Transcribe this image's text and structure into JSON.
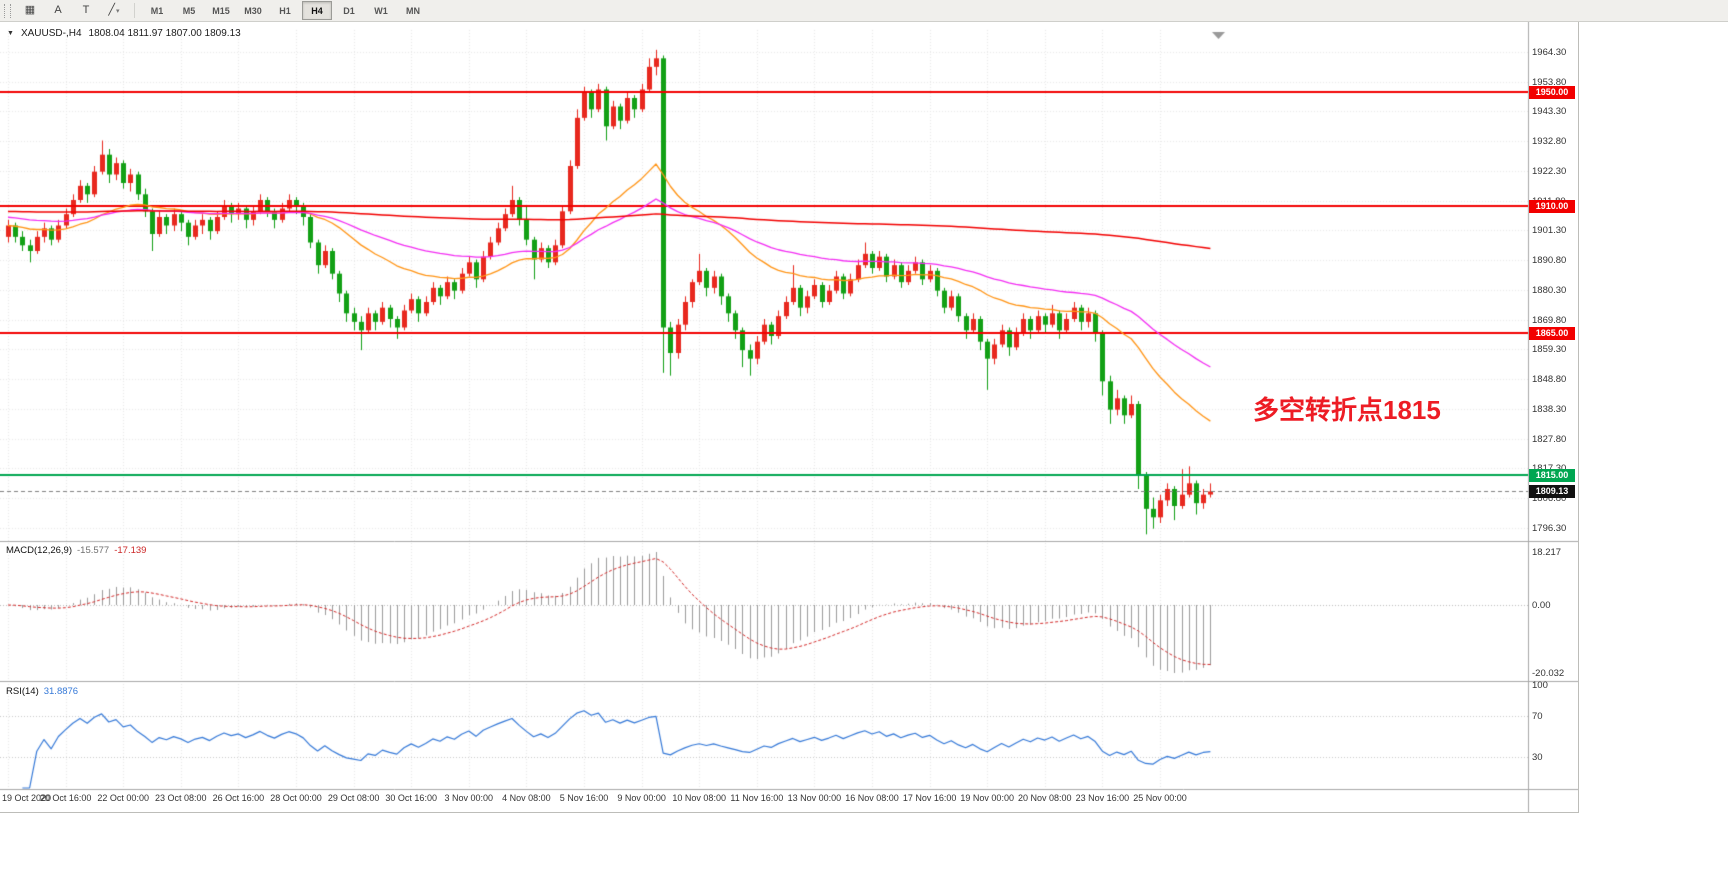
{
  "toolbar": {
    "tools": [
      {
        "name": "new-chart-icon",
        "glyph": "▦"
      },
      {
        "name": "cursor-icon",
        "glyph": "A"
      },
      {
        "name": "text-label-icon",
        "glyph": "T"
      },
      {
        "name": "trendline-icon",
        "glyph": "╱",
        "dropdown": "▾"
      }
    ],
    "timeframes": [
      "M1",
      "M5",
      "M15",
      "M30",
      "H1",
      "H4",
      "D1",
      "W1",
      "MN"
    ],
    "active_timeframe": "H4"
  },
  "chart_data": {
    "type": "candlestick",
    "symbol": "XAUUSD",
    "period": "H4",
    "symbol_label": "XAUUSD-,H4",
    "ohlc_string": "1808.04 1811.97 1807.00 1809.13",
    "bull_color": "#e8281e",
    "bear_color": "#12a015",
    "candles": [
      [
        1899,
        1905,
        1897,
        1903
      ],
      [
        1903,
        1904,
        1897,
        1899
      ],
      [
        1899,
        1901,
        1894,
        1896
      ],
      [
        1896,
        1898,
        1890,
        1894
      ],
      [
        1894,
        1901,
        1893,
        1899
      ],
      [
        1899,
        1904,
        1897,
        1902
      ],
      [
        1902,
        1903,
        1896,
        1898
      ],
      [
        1898,
        1905,
        1897,
        1903
      ],
      [
        1903,
        1909,
        1902,
        1907
      ],
      [
        1907,
        1914,
        1906,
        1912
      ],
      [
        1912,
        1919,
        1911,
        1917
      ],
      [
        1917,
        1918,
        1911,
        1914
      ],
      [
        1914,
        1924,
        1913,
        1922
      ],
      [
        1922,
        1933,
        1921,
        1928
      ],
      [
        1928,
        1930,
        1918,
        1921
      ],
      [
        1921,
        1927,
        1919,
        1925
      ],
      [
        1925,
        1926,
        1916,
        1918
      ],
      [
        1918,
        1923,
        1915,
        1921
      ],
      [
        1921,
        1922,
        1912,
        1914
      ],
      [
        1914,
        1916,
        1906,
        1908
      ],
      [
        1908,
        1909,
        1894,
        1900
      ],
      [
        1900,
        1908,
        1899,
        1906
      ],
      [
        1906,
        1907,
        1900,
        1903
      ],
      [
        1903,
        1909,
        1901,
        1907
      ],
      [
        1907,
        1908,
        1901,
        1904
      ],
      [
        1904,
        1905,
        1896,
        1899
      ],
      [
        1899,
        1905,
        1898,
        1903
      ],
      [
        1903,
        1907,
        1900,
        1905
      ],
      [
        1905,
        1906,
        1898,
        1901
      ],
      [
        1901,
        1908,
        1900,
        1906
      ],
      [
        1906,
        1912,
        1905,
        1910
      ],
      [
        1910,
        1911,
        1904,
        1907
      ],
      [
        1907,
        1911,
        1905,
        1909
      ],
      [
        1909,
        1910,
        1902,
        1905
      ],
      [
        1905,
        1910,
        1903,
        1908
      ],
      [
        1908,
        1914,
        1907,
        1912
      ],
      [
        1912,
        1913,
        1906,
        1908
      ],
      [
        1908,
        1909,
        1902,
        1905
      ],
      [
        1905,
        1911,
        1904,
        1909
      ],
      [
        1909,
        1914,
        1908,
        1912
      ],
      [
        1912,
        1913,
        1907,
        1910
      ],
      [
        1910,
        1911,
        1903,
        1906
      ],
      [
        1906,
        1907,
        1895,
        1897
      ],
      [
        1897,
        1898,
        1886,
        1889
      ],
      [
        1889,
        1896,
        1888,
        1894
      ],
      [
        1894,
        1895,
        1884,
        1886
      ],
      [
        1886,
        1887,
        1876,
        1879
      ],
      [
        1879,
        1880,
        1869,
        1872
      ],
      [
        1872,
        1874,
        1866,
        1869
      ],
      [
        1869,
        1871,
        1859,
        1866
      ],
      [
        1866,
        1874,
        1865,
        1872
      ],
      [
        1872,
        1873,
        1866,
        1869
      ],
      [
        1869,
        1876,
        1868,
        1874
      ],
      [
        1874,
        1875,
        1867,
        1870
      ],
      [
        1870,
        1871,
        1863,
        1867
      ],
      [
        1867,
        1875,
        1866,
        1873
      ],
      [
        1873,
        1879,
        1872,
        1877
      ],
      [
        1877,
        1878,
        1869,
        1872
      ],
      [
        1872,
        1878,
        1871,
        1876
      ],
      [
        1876,
        1883,
        1875,
        1881
      ],
      [
        1881,
        1882,
        1875,
        1878
      ],
      [
        1878,
        1885,
        1877,
        1883
      ],
      [
        1883,
        1884,
        1877,
        1880
      ],
      [
        1880,
        1888,
        1879,
        1886
      ],
      [
        1886,
        1892,
        1885,
        1890
      ],
      [
        1890,
        1891,
        1881,
        1884
      ],
      [
        1884,
        1894,
        1883,
        1892
      ],
      [
        1892,
        1899,
        1891,
        1897
      ],
      [
        1897,
        1904,
        1896,
        1902
      ],
      [
        1902,
        1909,
        1901,
        1907
      ],
      [
        1907,
        1917,
        1906,
        1912
      ],
      [
        1912,
        1913,
        1903,
        1905
      ],
      [
        1905,
        1910,
        1896,
        1898
      ],
      [
        1898,
        1899,
        1884,
        1891
      ],
      [
        1891,
        1897,
        1890,
        1895
      ],
      [
        1895,
        1896,
        1888,
        1890
      ],
      [
        1890,
        1898,
        1889,
        1896
      ],
      [
        1896,
        1910,
        1895,
        1908
      ],
      [
        1908,
        1926,
        1907,
        1924
      ],
      [
        1924,
        1944,
        1923,
        1941
      ],
      [
        1941,
        1952,
        1940,
        1950
      ],
      [
        1950,
        1951,
        1941,
        1944
      ],
      [
        1944,
        1953,
        1943,
        1951
      ],
      [
        1951,
        1952,
        1933,
        1938
      ],
      [
        1938,
        1947,
        1937,
        1945
      ],
      [
        1945,
        1946,
        1937,
        1940
      ],
      [
        1940,
        1950,
        1939,
        1948
      ],
      [
        1948,
        1949,
        1941,
        1944
      ],
      [
        1944,
        1953,
        1943,
        1951
      ],
      [
        1951,
        1962,
        1950,
        1959
      ],
      [
        1959,
        1965,
        1956,
        1962
      ],
      [
        1962,
        1963,
        1851,
        1867
      ],
      [
        1867,
        1869,
        1850,
        1858
      ],
      [
        1858,
        1870,
        1856,
        1868
      ],
      [
        1868,
        1878,
        1866,
        1876
      ],
      [
        1876,
        1884,
        1874,
        1883
      ],
      [
        1883,
        1893,
        1882,
        1887
      ],
      [
        1887,
        1888,
        1878,
        1881
      ],
      [
        1881,
        1887,
        1879,
        1885
      ],
      [
        1885,
        1886,
        1875,
        1878
      ],
      [
        1878,
        1879,
        1869,
        1872
      ],
      [
        1872,
        1873,
        1863,
        1866
      ],
      [
        1866,
        1867,
        1853,
        1859
      ],
      [
        1859,
        1861,
        1850,
        1856
      ],
      [
        1856,
        1864,
        1854,
        1862
      ],
      [
        1862,
        1870,
        1861,
        1868
      ],
      [
        1868,
        1869,
        1861,
        1864
      ],
      [
        1864,
        1873,
        1863,
        1871
      ],
      [
        1871,
        1878,
        1870,
        1876
      ],
      [
        1876,
        1889,
        1875,
        1881
      ],
      [
        1881,
        1882,
        1871,
        1874
      ],
      [
        1874,
        1880,
        1872,
        1878
      ],
      [
        1878,
        1884,
        1877,
        1882
      ],
      [
        1882,
        1883,
        1874,
        1876
      ],
      [
        1876,
        1882,
        1875,
        1880
      ],
      [
        1880,
        1887,
        1879,
        1885
      ],
      [
        1885,
        1886,
        1877,
        1879
      ],
      [
        1879,
        1886,
        1878,
        1884
      ],
      [
        1884,
        1891,
        1883,
        1889
      ],
      [
        1889,
        1897,
        1888,
        1893
      ],
      [
        1893,
        1894,
        1886,
        1888
      ],
      [
        1888,
        1894,
        1887,
        1892
      ],
      [
        1892,
        1893,
        1883,
        1885
      ],
      [
        1885,
        1891,
        1884,
        1889
      ],
      [
        1889,
        1890,
        1881,
        1883
      ],
      [
        1883,
        1889,
        1882,
        1887
      ],
      [
        1887,
        1892,
        1886,
        1890
      ],
      [
        1890,
        1891,
        1882,
        1884
      ],
      [
        1884,
        1889,
        1883,
        1887
      ],
      [
        1887,
        1888,
        1878,
        1880
      ],
      [
        1880,
        1881,
        1872,
        1874
      ],
      [
        1874,
        1880,
        1873,
        1878
      ],
      [
        1878,
        1879,
        1869,
        1871
      ],
      [
        1871,
        1872,
        1863,
        1866
      ],
      [
        1866,
        1872,
        1865,
        1870
      ],
      [
        1870,
        1871,
        1859,
        1862
      ],
      [
        1862,
        1863,
        1845,
        1856
      ],
      [
        1856,
        1863,
        1854,
        1861
      ],
      [
        1861,
        1868,
        1860,
        1866
      ],
      [
        1866,
        1867,
        1857,
        1860
      ],
      [
        1860,
        1867,
        1859,
        1865
      ],
      [
        1865,
        1872,
        1864,
        1870
      ],
      [
        1870,
        1871,
        1863,
        1866
      ],
      [
        1866,
        1873,
        1865,
        1871
      ],
      [
        1871,
        1872,
        1865,
        1868
      ],
      [
        1868,
        1875,
        1867,
        1872
      ],
      [
        1872,
        1873,
        1863,
        1866
      ],
      [
        1866,
        1872,
        1865,
        1870
      ],
      [
        1870,
        1876,
        1869,
        1874
      ],
      [
        1874,
        1875,
        1866,
        1869
      ],
      [
        1869,
        1874,
        1867,
        1872
      ],
      [
        1872,
        1873,
        1862,
        1865
      ],
      [
        1865,
        1866,
        1843,
        1848
      ],
      [
        1848,
        1850,
        1833,
        1838
      ],
      [
        1838,
        1845,
        1836,
        1842
      ],
      [
        1842,
        1843,
        1833,
        1836
      ],
      [
        1836,
        1843,
        1835,
        1840
      ],
      [
        1840,
        1841,
        1810,
        1815
      ],
      [
        1815,
        1816,
        1794,
        1803
      ],
      [
        1803,
        1807,
        1796,
        1800
      ],
      [
        1800,
        1808,
        1798,
        1806
      ],
      [
        1806,
        1812,
        1804,
        1810
      ],
      [
        1810,
        1811,
        1799,
        1804
      ],
      [
        1804,
        1817,
        1803,
        1808
      ],
      [
        1808,
        1818,
        1807,
        1812
      ],
      [
        1812,
        1813,
        1801,
        1805
      ],
      [
        1805,
        1810,
        1803,
        1808
      ],
      [
        1808.04,
        1811.97,
        1807,
        1809.13
      ]
    ],
    "x_axis": [
      "19 Oct 2020",
      "20 Oct 16:00",
      "22 Oct 00:00",
      "23 Oct 08:00",
      "26 Oct 16:00",
      "28 Oct 00:00",
      "29 Oct 08:00",
      "30 Oct 16:00",
      "3 Nov 00:00",
      "4 Nov 08:00",
      "5 Nov 16:00",
      "9 Nov 00:00",
      "10 Nov 08:00",
      "11 Nov 16:00",
      "13 Nov 00:00",
      "16 Nov 08:00",
      "17 Nov 16:00",
      "19 Nov 00:00",
      "20 Nov 08:00",
      "23 Nov 16:00",
      "25 Nov 00:00"
    ],
    "y_axis": [
      "1964.30",
      "1953.80",
      "1943.30",
      "1932.80",
      "1922.30",
      "1911.80",
      "1901.30",
      "1890.80",
      "1880.30",
      "1869.80",
      "1859.30",
      "1848.80",
      "1838.30",
      "1827.80",
      "1817.30",
      "1806.80",
      "1796.30"
    ],
    "hlines": [
      {
        "price": 1950,
        "label": "1950.00",
        "color": "#f20000"
      },
      {
        "price": 1910,
        "label": "1910.00",
        "color": "#f20000"
      },
      {
        "price": 1865,
        "label": "1865.00",
        "color": "#f20000"
      },
      {
        "price": 1815,
        "label": "1815.00",
        "color": "#00a651"
      }
    ],
    "current_price": {
      "value": 1809.13,
      "label": "1809.13",
      "color": "#111111"
    },
    "moving_averages": [
      {
        "name": "fast-ma",
        "color": "#ff9414"
      },
      {
        "name": "mid-ma",
        "color": "#f32cf3"
      },
      {
        "name": "slow-ma",
        "color": "#f20000"
      }
    ],
    "annotation": {
      "text": "多空转折点1815",
      "color": "#ed1c24"
    },
    "indicators": {
      "macd": {
        "name": "MACD(12,26,9)",
        "main_value": "-15.577",
        "signal_value": "-17.139",
        "axis": [
          "18.217",
          "0.00",
          "-20.032"
        ],
        "histogram_color": "#9b9b9b",
        "signal_color": "#d42a2a"
      },
      "rsi": {
        "name": "RSI(14)",
        "value": "31.8876",
        "axis": [
          "100",
          "70",
          "30"
        ],
        "levels": [
          70,
          30
        ],
        "color": "#3579d8"
      }
    }
  }
}
